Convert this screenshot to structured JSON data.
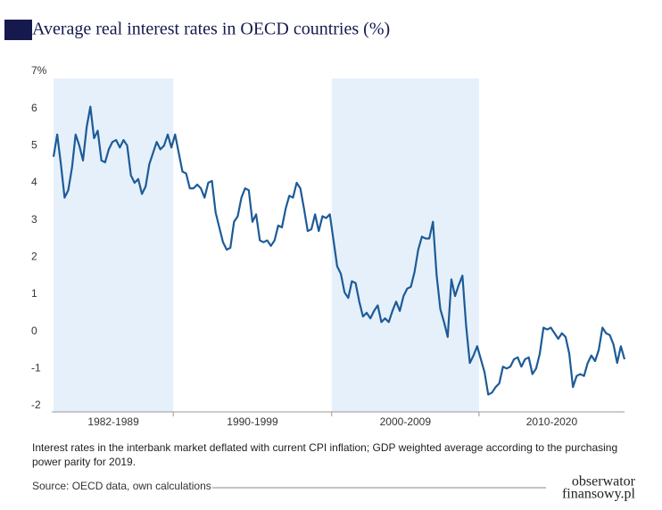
{
  "chart_data": {
    "type": "line",
    "title": "Average real interest rates in OECD countries (%)",
    "categories": [
      "1982-1989",
      "1990-1999",
      "2000-2009",
      "2010-2020"
    ],
    "values": [
      [
        4.7,
        5.3,
        4.5,
        3.6,
        3.8,
        4.4,
        5.3,
        5.0,
        4.6,
        5.5,
        6.05,
        5.2,
        5.4,
        4.6,
        4.55,
        4.9,
        5.1,
        5.15,
        4.95,
        5.15,
        5.0,
        4.2,
        4.0,
        4.1,
        3.7,
        3.9,
        4.5,
        4.8,
        5.1,
        4.9,
        5.0,
        5.3,
        4.95
      ],
      [
        5.3,
        4.8,
        4.3,
        4.25,
        3.85,
        3.85,
        3.95,
        3.85,
        3.6,
        4.0,
        4.05,
        3.2,
        2.8,
        2.4,
        2.2,
        2.25,
        2.95,
        3.1,
        3.6,
        3.85,
        3.8,
        2.95,
        3.15,
        2.45,
        2.4,
        2.45,
        2.3,
        2.45,
        2.85,
        2.8,
        3.3,
        3.65,
        3.6,
        4.0,
        3.85,
        3.3,
        2.7,
        2.75,
        3.15,
        2.7,
        3.1,
        3.05,
        3.15
      ],
      [
        2.45,
        1.75,
        1.55,
        1.05,
        0.9,
        1.35,
        1.3,
        0.8,
        0.4,
        0.5,
        0.35,
        0.55,
        0.7,
        0.25,
        0.35,
        0.25,
        0.55,
        0.8,
        0.55,
        0.95,
        1.15,
        1.2,
        1.6,
        2.2,
        2.55,
        2.5,
        2.5,
        2.95,
        1.5,
        0.6,
        0.25,
        -0.15,
        1.4,
        0.95,
        1.25,
        1.5,
        0.15,
        -0.85,
        -0.65,
        -0.4
      ],
      [
        -0.75,
        -1.1,
        -1.7,
        -1.65,
        -1.5,
        -1.4,
        -0.95,
        -1.0,
        -0.95,
        -0.75,
        -0.7,
        -0.95,
        -0.75,
        -0.7,
        -1.15,
        -1.0,
        -0.6,
        0.1,
        0.05,
        0.1,
        -0.05,
        -0.2,
        -0.05,
        -0.15,
        -0.6,
        -1.5,
        -1.2,
        -1.15,
        -1.2,
        -0.85,
        -0.65,
        -0.8,
        -0.5,
        0.1,
        -0.05,
        -0.1,
        -0.35,
        -0.85,
        -0.4,
        -0.75
      ]
    ],
    "color": "#1d5b98",
    "band_color": "#e6f0fa",
    "ylim": [
      -2,
      7
    ],
    "yticks": [
      -2,
      -1,
      0,
      1,
      2,
      3,
      4,
      5,
      6,
      {
        "value": 7,
        "label": "7%"
      }
    ]
  },
  "footer": {
    "note": "Interest rates in the interbank market   deflated with current CPI inflation; GDP weighted average according to the   purchasing power parity for 2019.",
    "source": "Source: OECD data, own calculations",
    "brand": [
      "obserwator",
      "finansowy.pl"
    ]
  }
}
